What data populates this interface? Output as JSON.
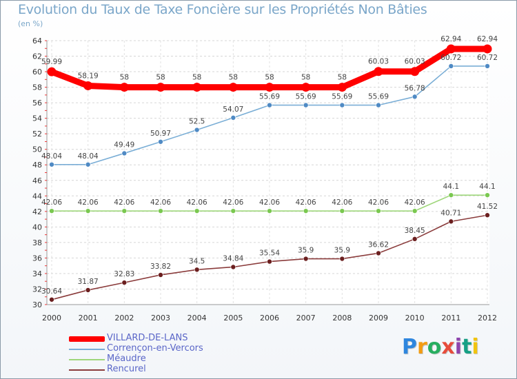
{
  "chart_data": {
    "type": "line",
    "title": "Evolution du Taux de Taxe Foncière sur les Propriétés Non Bâties",
    "subtitle": "(en %)",
    "xlabel": "",
    "ylabel": "",
    "ylim": [
      30,
      64
    ],
    "yticks": [
      "30",
      "32",
      "34",
      "36",
      "38",
      "40",
      "42",
      "44",
      "46",
      "48",
      "50",
      "52",
      "54",
      "56",
      "58",
      "60",
      "62",
      "64"
    ],
    "categories": [
      "2000",
      "2001",
      "2002",
      "2003",
      "2004",
      "2005",
      "2006",
      "2007",
      "2008",
      "2009",
      "2010",
      "2011",
      "2012"
    ],
    "series": [
      {
        "name": "VILLARD-DE-LANS",
        "color": "#ff0000",
        "values": [
          59.99,
          58.19,
          58,
          58,
          58,
          58,
          58,
          58,
          58,
          60.03,
          60.03,
          62.94,
          62.94
        ],
        "labels": [
          "59.99",
          "58.19",
          "58",
          "58",
          "58",
          "58",
          "58",
          "58",
          "58",
          "60.03",
          "60.03",
          "62.94",
          "62.94"
        ]
      },
      {
        "name": "Corrençon-en-Vercors",
        "color": "#7aaed6",
        "marker": "#4f8ac4",
        "values": [
          48.04,
          48.04,
          49.49,
          50.97,
          52.5,
          54.07,
          55.69,
          55.69,
          55.69,
          55.69,
          56.78,
          60.72,
          60.72
        ],
        "labels": [
          "48.04",
          "48.04",
          "49.49",
          "50.97",
          "52.5",
          "54.07",
          "55.69",
          "55.69",
          "55.69",
          "55.69",
          "56.78",
          "60.72",
          "60.72"
        ]
      },
      {
        "name": "Méaudre",
        "color": "#9ed67a",
        "marker": "#7ac850",
        "values": [
          42.06,
          42.06,
          42.06,
          42.06,
          42.06,
          42.06,
          42.06,
          42.06,
          42.06,
          42.06,
          42.06,
          44.1,
          44.1
        ],
        "labels": [
          "42.06",
          "42.06",
          "42.06",
          "42.06",
          "42.06",
          "42.06",
          "42.06",
          "42.06",
          "42.06",
          "42.06",
          "42.06",
          "44.1",
          "44.1"
        ]
      },
      {
        "name": "Rencurel",
        "color": "#8a3b3b",
        "marker": "#6b1f1f",
        "values": [
          30.64,
          31.87,
          32.83,
          33.82,
          34.5,
          34.84,
          35.54,
          35.9,
          35.9,
          36.62,
          38.45,
          40.71,
          41.52
        ],
        "labels": [
          "30.64",
          "31.87",
          "32.83",
          "33.82",
          "34.5",
          "34.84",
          "35.54",
          "35.9",
          "35.9",
          "36.62",
          "38.45",
          "40.71",
          "41.52"
        ]
      }
    ]
  },
  "logo": {
    "letters": [
      "P",
      "r",
      "o",
      "x",
      "i",
      "t",
      "i"
    ],
    "colors": [
      "#2e86de",
      "#f39c12",
      "#27ae60",
      "#e74c3c",
      "#8e44ad",
      "#16a085",
      "#f1c40f"
    ]
  }
}
